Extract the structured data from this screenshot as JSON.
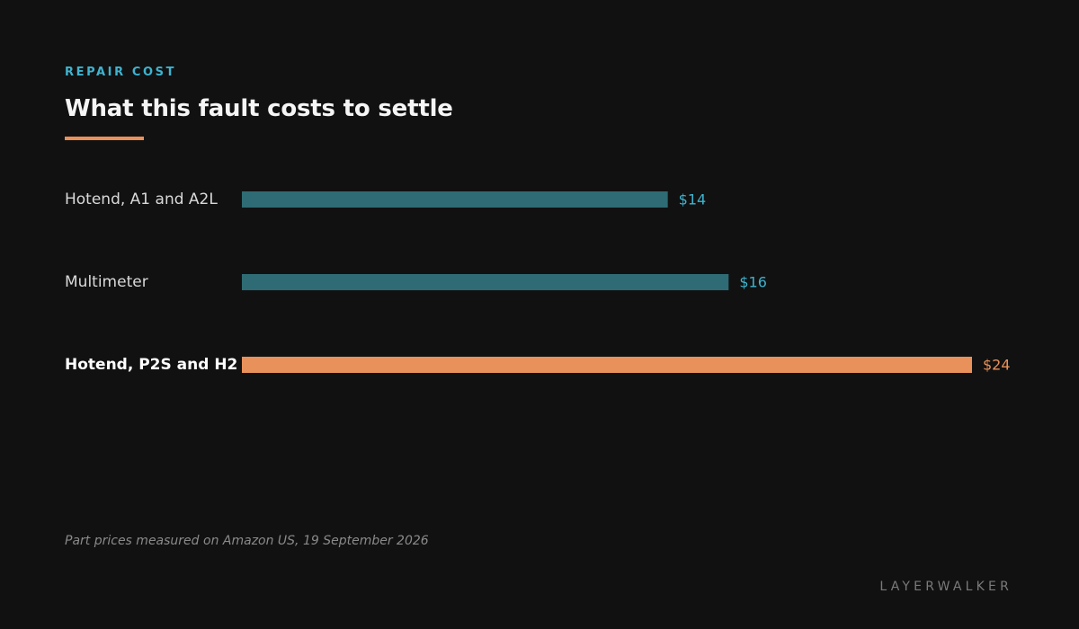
{
  "header": {
    "eyebrow": "REPAIR COST",
    "title": "What this fault costs to settle"
  },
  "chart_data": {
    "type": "bar",
    "orientation": "horizontal",
    "categories": [
      "Hotend, A1 and A2L",
      "Multimeter",
      "Hotend, P2S and H2"
    ],
    "values": [
      14,
      16,
      24
    ],
    "value_labels": [
      "$14",
      "$16",
      "$24"
    ],
    "highlighted": [
      false,
      false,
      true
    ],
    "xlim": [
      0,
      24
    ],
    "grid": false,
    "colors": {
      "default_bar": "#2e6b74",
      "default_label": "#3fb3cf",
      "highlight": "#e8915a"
    }
  },
  "footnote": "Part prices measured on Amazon US, 19 September 2026",
  "brand": "LAYERWALKER"
}
